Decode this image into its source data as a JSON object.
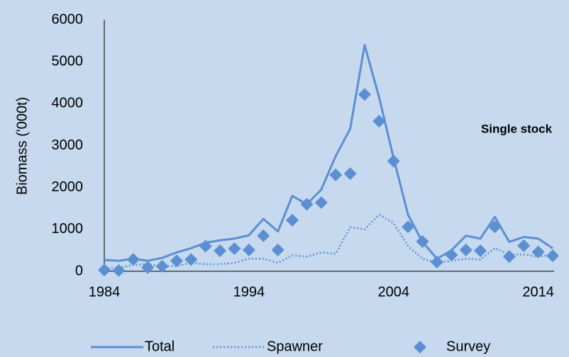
{
  "chart_data": {
    "type": "line",
    "y_label": "Biomass ('000t)",
    "annotation": "Single stock",
    "x": [
      1984,
      1985,
      1986,
      1987,
      1988,
      1989,
      1990,
      1991,
      1992,
      1993,
      1994,
      1995,
      1996,
      1997,
      1998,
      1999,
      2000,
      2001,
      2002,
      2003,
      2004,
      2005,
      2006,
      2007,
      2008,
      2009,
      2010,
      2011,
      2012,
      2013,
      2014,
      2015
    ],
    "xlim": [
      1984,
      2015
    ],
    "xticks": [
      1984,
      1994,
      2004,
      2014
    ],
    "ylim": [
      0,
      6000
    ],
    "yticks": [
      0,
      1000,
      2000,
      3000,
      4000,
      5000,
      6000
    ],
    "grid": false,
    "legend": "bottom",
    "series": [
      {
        "name": "Total",
        "color": "#5b8fd2",
        "style": "solid",
        "values": [
          270,
          250,
          300,
          250,
          320,
          450,
          550,
          680,
          740,
          780,
          860,
          1250,
          950,
          1800,
          1600,
          1950,
          2750,
          3400,
          5400,
          4150,
          2700,
          1350,
          700,
          300,
          500,
          850,
          780,
          1300,
          700,
          820,
          780,
          550
        ]
      },
      {
        "name": "Spawner",
        "color": "#5b8fd2",
        "style": "dotted",
        "values": [
          80,
          80,
          150,
          170,
          120,
          130,
          200,
          170,
          170,
          200,
          300,
          300,
          200,
          380,
          350,
          450,
          420,
          1050,
          1000,
          1350,
          1150,
          600,
          300,
          200,
          250,
          300,
          280,
          550,
          400,
          400,
          350,
          400
        ]
      },
      {
        "name": "Survey",
        "color": "#5b8fd2",
        "style": "diamond",
        "values": [
          30,
          20,
          280,
          90,
          120,
          250,
          280,
          600,
          490,
          540,
          510,
          850,
          510,
          1220,
          1600,
          1640,
          2300,
          2330,
          4220,
          3580,
          2630,
          1060,
          710,
          220,
          390,
          510,
          490,
          1060,
          350,
          610,
          460,
          370
        ]
      }
    ]
  }
}
